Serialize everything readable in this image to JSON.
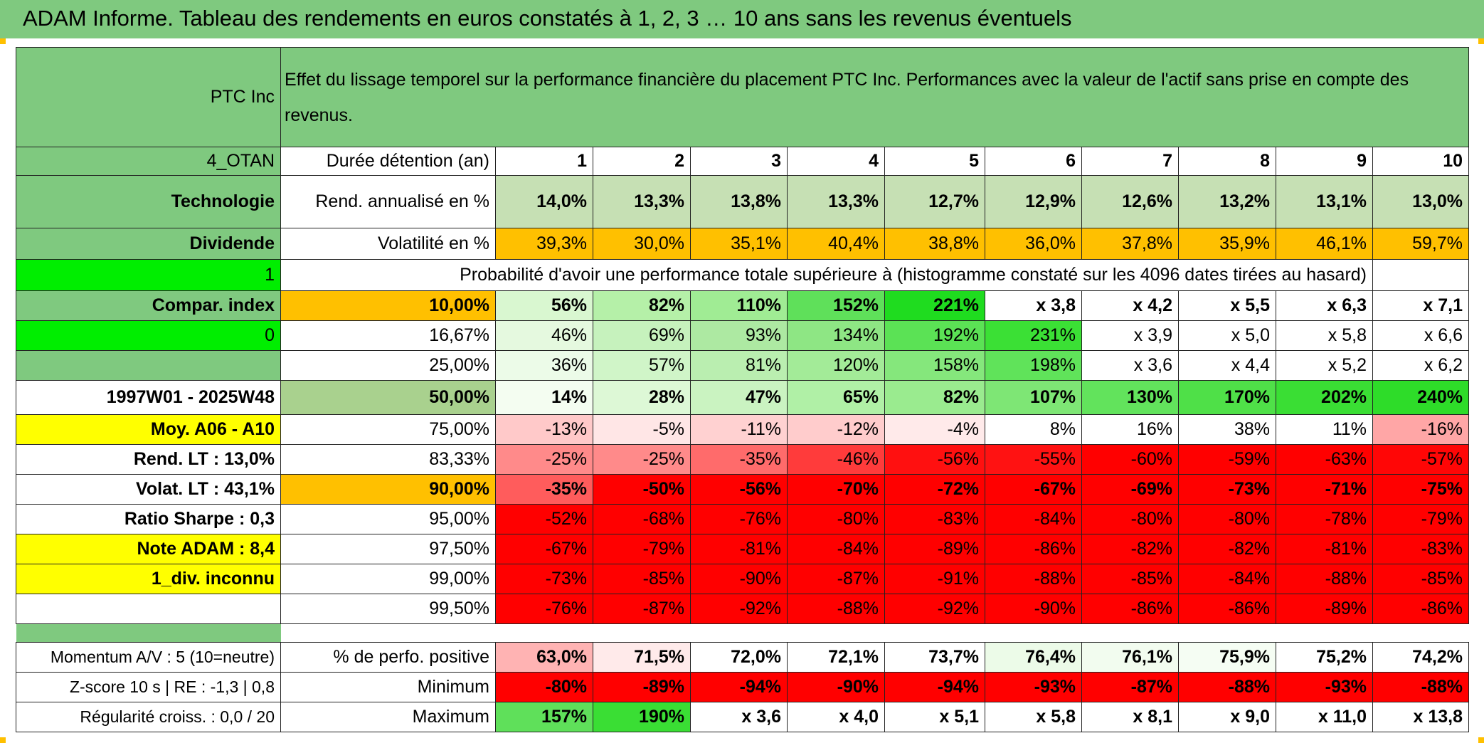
{
  "title": "ADAM Informe. Tableau des rendements en euros constatés à 1, 2, 3 … 10 ans sans les revenus éventuels",
  "header": {
    "asset": "PTC Inc",
    "description": "Effet du lissage temporel sur la performance financière du placement PTC Inc. Performances avec la valeur de l'actif sans prise en compte des revenus."
  },
  "side": {
    "group": "4_OTAN",
    "sector": "Technologie",
    "dividend": "Dividende",
    "flag1": "1",
    "compar": "Compar. index",
    "flag0": "0",
    "blank": "",
    "period": "1997W01 - 2025W48",
    "moy": "Moy. A06 - A10",
    "rend_lt": "Rend. LT :    13,0%",
    "volat_lt": "Volat. LT :    43,1%",
    "sharpe": "Ratio Sharpe :    0,3",
    "note": "Note ADAM : 8,4",
    "div": "1_div. inconnu",
    "momentum": "Momentum A/V : 5 (10=neutre)",
    "zscore": "Z-score 10 s | RE : -1,3 | 0,8",
    "regularite": "Régularité croiss. : 0,0 / 20"
  },
  "labels": {
    "duree": "Durée détention (an)",
    "rend": "Rend. annualisé en %",
    "vol": "Volatilité en %",
    "proba": "Probabilité d'avoir une performance totale supérieure à (histogramme constaté sur les 4096 dates tirées au hasard)",
    "pos": "% de perfo. positive",
    "min": "Minimum",
    "max": "Maximum"
  },
  "years": [
    "1",
    "2",
    "3",
    "4",
    "5",
    "6",
    "7",
    "8",
    "9",
    "10"
  ],
  "rend": [
    "14,0%",
    "13,3%",
    "13,8%",
    "13,3%",
    "12,7%",
    "12,9%",
    "12,6%",
    "13,2%",
    "13,1%",
    "13,0%"
  ],
  "vol": [
    "39,3%",
    "30,0%",
    "35,1%",
    "40,4%",
    "38,8%",
    "36,0%",
    "37,8%",
    "35,9%",
    "46,1%",
    "59,7%"
  ],
  "percentiles": [
    {
      "p": "10,00%",
      "v": [
        "56%",
        "82%",
        "110%",
        "152%",
        "221%",
        "x 3,8",
        "x 4,2",
        "x 5,5",
        "x 6,3",
        "x 7,1"
      ]
    },
    {
      "p": "16,67%",
      "v": [
        "46%",
        "69%",
        "93%",
        "134%",
        "192%",
        "231%",
        "x 3,9",
        "x 5,0",
        "x 5,8",
        "x 6,6"
      ]
    },
    {
      "p": "25,00%",
      "v": [
        "36%",
        "57%",
        "81%",
        "120%",
        "158%",
        "198%",
        "x 3,6",
        "x 4,4",
        "x 5,2",
        "x 6,2"
      ]
    },
    {
      "p": "50,00%",
      "v": [
        "14%",
        "28%",
        "47%",
        "65%",
        "82%",
        "107%",
        "130%",
        "170%",
        "202%",
        "240%"
      ]
    },
    {
      "p": "75,00%",
      "v": [
        "-13%",
        "-5%",
        "-11%",
        "-12%",
        "-4%",
        "8%",
        "16%",
        "38%",
        "11%",
        "-16%"
      ]
    },
    {
      "p": "83,33%",
      "v": [
        "-25%",
        "-25%",
        "-35%",
        "-46%",
        "-56%",
        "-55%",
        "-60%",
        "-59%",
        "-63%",
        "-57%"
      ]
    },
    {
      "p": "90,00%",
      "v": [
        "-35%",
        "-50%",
        "-56%",
        "-70%",
        "-72%",
        "-67%",
        "-69%",
        "-73%",
        "-71%",
        "-75%"
      ]
    },
    {
      "p": "95,00%",
      "v": [
        "-52%",
        "-68%",
        "-76%",
        "-80%",
        "-83%",
        "-84%",
        "-80%",
        "-80%",
        "-78%",
        "-79%"
      ]
    },
    {
      "p": "97,50%",
      "v": [
        "-67%",
        "-79%",
        "-81%",
        "-84%",
        "-89%",
        "-86%",
        "-82%",
        "-82%",
        "-81%",
        "-83%"
      ]
    },
    {
      "p": "99,00%",
      "v": [
        "-73%",
        "-85%",
        "-90%",
        "-87%",
        "-91%",
        "-88%",
        "-85%",
        "-84%",
        "-88%",
        "-85%"
      ]
    },
    {
      "p": "99,50%",
      "v": [
        "-76%",
        "-87%",
        "-92%",
        "-88%",
        "-92%",
        "-90%",
        "-86%",
        "-86%",
        "-89%",
        "-86%"
      ]
    }
  ],
  "pos": [
    "63,0%",
    "71,5%",
    "72,0%",
    "72,1%",
    "73,7%",
    "76,4%",
    "76,1%",
    "75,9%",
    "75,2%",
    "74,2%"
  ],
  "min": [
    "-80%",
    "-89%",
    "-94%",
    "-90%",
    "-94%",
    "-93%",
    "-87%",
    "-88%",
    "-93%",
    "-88%"
  ],
  "max": [
    "157%",
    "190%",
    "x 3,6",
    "x 4,0",
    "x 5,1",
    "x 5,8",
    "x 8,1",
    "x 9,0",
    "x 11,0",
    "x 13,8"
  ],
  "colors": {
    "green_header": "#7fc97f",
    "light_green": "#c6e0b4",
    "bright_green": "#00ee00",
    "yellow": "#ffff00",
    "orange": "#ffc000",
    "red": "#ff0000",
    "red_text": "#d31f1f"
  }
}
